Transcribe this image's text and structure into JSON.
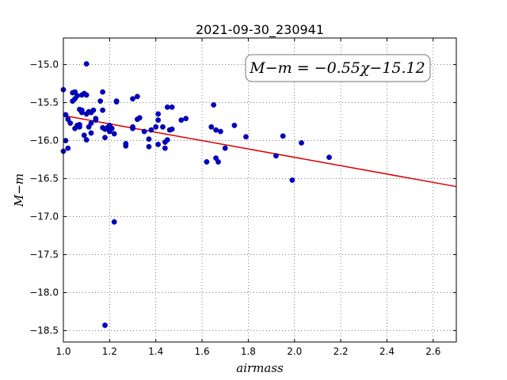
{
  "chart_data": {
    "type": "scatter",
    "title": "2021-09-30_230941",
    "xlabel": "airmass",
    "ylabel": "M−m",
    "xlim": [
      1.0,
      2.7
    ],
    "ylim": [
      -18.65,
      -14.65
    ],
    "y_inverted": true,
    "grid": true,
    "x_ticks": [
      1.0,
      1.2,
      1.4,
      1.6,
      1.8,
      2.0,
      2.2,
      2.4,
      2.6
    ],
    "x_tick_labels": [
      "1.0",
      "1.2",
      "1.4",
      "1.6",
      "1.8",
      "2.0",
      "2.2",
      "2.4",
      "2.6"
    ],
    "y_ticks": [
      -15.0,
      -15.5,
      -16.0,
      -16.5,
      -17.0,
      -17.5,
      -18.0,
      -18.5
    ],
    "y_tick_labels": [
      "−15.0",
      "−15.5",
      "−16.0",
      "−16.5",
      "−17.0",
      "−17.5",
      "−18.0",
      "−18.5"
    ],
    "fit_annotation": "M−m = −0.55χ−15.12",
    "fit": {
      "slope": -0.55,
      "intercept": -15.12,
      "x_range": [
        1.0,
        2.7
      ],
      "color": "#dd0000"
    },
    "point_color": "#0000cc",
    "points": [
      [
        1.0,
        -15.33
      ],
      [
        1.0,
        -16.14
      ],
      [
        1.01,
        -16.0
      ],
      [
        1.01,
        -15.66
      ],
      [
        1.02,
        -15.72
      ],
      [
        1.02,
        -16.1
      ],
      [
        1.03,
        -15.77
      ],
      [
        1.04,
        -15.37
      ],
      [
        1.04,
        -15.48
      ],
      [
        1.05,
        -15.36
      ],
      [
        1.05,
        -15.45
      ],
      [
        1.05,
        -15.84
      ],
      [
        1.06,
        -15.8
      ],
      [
        1.06,
        -15.41
      ],
      [
        1.07,
        -15.59
      ],
      [
        1.07,
        -15.79
      ],
      [
        1.07,
        -15.82
      ],
      [
        1.08,
        -15.63
      ],
      [
        1.08,
        -15.4
      ],
      [
        1.08,
        -15.6
      ],
      [
        1.09,
        -15.93
      ],
      [
        1.09,
        -15.38
      ],
      [
        1.1,
        -15.99
      ],
      [
        1.1,
        -15.4
      ],
      [
        1.1,
        -14.99
      ],
      [
        1.1,
        -15.65
      ],
      [
        1.11,
        -15.62
      ],
      [
        1.11,
        -15.82
      ],
      [
        1.12,
        -15.9
      ],
      [
        1.12,
        -15.77
      ],
      [
        1.12,
        -15.63
      ],
      [
        1.13,
        -15.6
      ],
      [
        1.14,
        -15.73
      ],
      [
        1.14,
        -15.71
      ],
      [
        1.16,
        -15.48
      ],
      [
        1.17,
        -15.36
      ],
      [
        1.17,
        -15.6
      ],
      [
        1.17,
        -15.83
      ],
      [
        1.18,
        -15.85
      ],
      [
        1.18,
        -15.96
      ],
      [
        1.19,
        -15.83
      ],
      [
        1.2,
        -15.88
      ],
      [
        1.2,
        -15.8
      ],
      [
        1.21,
        -15.84
      ],
      [
        1.22,
        -15.91
      ],
      [
        1.22,
        -17.07
      ],
      [
        1.23,
        -15.49
      ],
      [
        1.23,
        -15.48
      ],
      [
        1.18,
        -18.43
      ],
      [
        1.27,
        -16.07
      ],
      [
        1.27,
        -16.04
      ],
      [
        1.3,
        -15.82
      ],
      [
        1.3,
        -15.84
      ],
      [
        1.3,
        -15.45
      ],
      [
        1.32,
        -15.42
      ],
      [
        1.32,
        -15.72
      ],
      [
        1.33,
        -15.7
      ],
      [
        1.35,
        -15.88
      ],
      [
        1.37,
        -15.98
      ],
      [
        1.37,
        -16.08
      ],
      [
        1.38,
        -15.86
      ],
      [
        1.4,
        -15.82
      ],
      [
        1.41,
        -16.05
      ],
      [
        1.41,
        -15.65
      ],
      [
        1.41,
        -15.73
      ],
      [
        1.43,
        -15.82
      ],
      [
        1.44,
        -16.02
      ],
      [
        1.44,
        -16.1
      ],
      [
        1.45,
        -15.99
      ],
      [
        1.45,
        -15.56
      ],
      [
        1.46,
        -15.86
      ],
      [
        1.47,
        -15.56
      ],
      [
        1.47,
        -15.85
      ],
      [
        1.51,
        -15.73
      ],
      [
        1.53,
        -15.71
      ],
      [
        1.62,
        -16.28
      ],
      [
        1.64,
        -15.82
      ],
      [
        1.65,
        -15.53
      ],
      [
        1.66,
        -16.23
      ],
      [
        1.66,
        -15.86
      ],
      [
        1.67,
        -16.28
      ],
      [
        1.68,
        -15.88
      ],
      [
        1.7,
        -16.1
      ],
      [
        1.74,
        -15.8
      ],
      [
        1.79,
        -15.95
      ],
      [
        1.92,
        -16.2
      ],
      [
        1.95,
        -15.94
      ],
      [
        1.99,
        -16.52
      ],
      [
        2.03,
        -16.03
      ],
      [
        2.15,
        -16.22
      ]
    ]
  }
}
